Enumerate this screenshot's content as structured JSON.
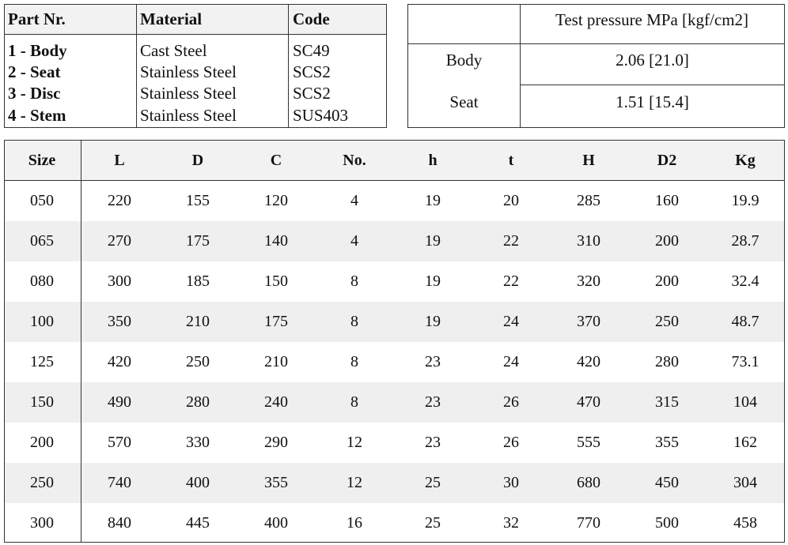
{
  "parts_table": {
    "headers": [
      "Part Nr.",
      "Material",
      "Code"
    ],
    "rows": [
      {
        "part": "1  -  Body",
        "material": "Cast Steel",
        "code": "SC49"
      },
      {
        "part": "2  -  Seat",
        "material": "Stainless Steel",
        "code": "SCS2"
      },
      {
        "part": "3  -  Disc",
        "material": "Stainless Steel",
        "code": "SCS2"
      },
      {
        "part": "4  -  Stem",
        "material": "Stainless Steel",
        "code": "SUS403"
      }
    ]
  },
  "pressure_table": {
    "header": "Test pressure MPa [kgf/cm2]",
    "rows": [
      {
        "label": "Body",
        "value": "2.06 [21.0]"
      },
      {
        "label": "Seat",
        "value": "1.51 [15.4]"
      }
    ]
  },
  "dimensions_table": {
    "headers": [
      "Size",
      "L",
      "D",
      "C",
      "No.",
      "h",
      "t",
      "H",
      "D2",
      "Kg"
    ],
    "rows": [
      [
        "050",
        "220",
        "155",
        "120",
        "4",
        "19",
        "20",
        "285",
        "160",
        "19.9"
      ],
      [
        "065",
        "270",
        "175",
        "140",
        "4",
        "19",
        "22",
        "310",
        "200",
        "28.7"
      ],
      [
        "080",
        "300",
        "185",
        "150",
        "8",
        "19",
        "22",
        "320",
        "200",
        "32.4"
      ],
      [
        "100",
        "350",
        "210",
        "175",
        "8",
        "19",
        "24",
        "370",
        "250",
        "48.7"
      ],
      [
        "125",
        "420",
        "250",
        "210",
        "8",
        "23",
        "24",
        "420",
        "280",
        "73.1"
      ],
      [
        "150",
        "490",
        "280",
        "240",
        "8",
        "23",
        "26",
        "470",
        "315",
        "104"
      ],
      [
        "200",
        "570",
        "330",
        "290",
        "12",
        "23",
        "26",
        "555",
        "355",
        "162"
      ],
      [
        "250",
        "740",
        "400",
        "355",
        "12",
        "25",
        "30",
        "680",
        "450",
        "304"
      ],
      [
        "300",
        "840",
        "445",
        "400",
        "16",
        "25",
        "32",
        "770",
        "500",
        "458"
      ]
    ]
  }
}
